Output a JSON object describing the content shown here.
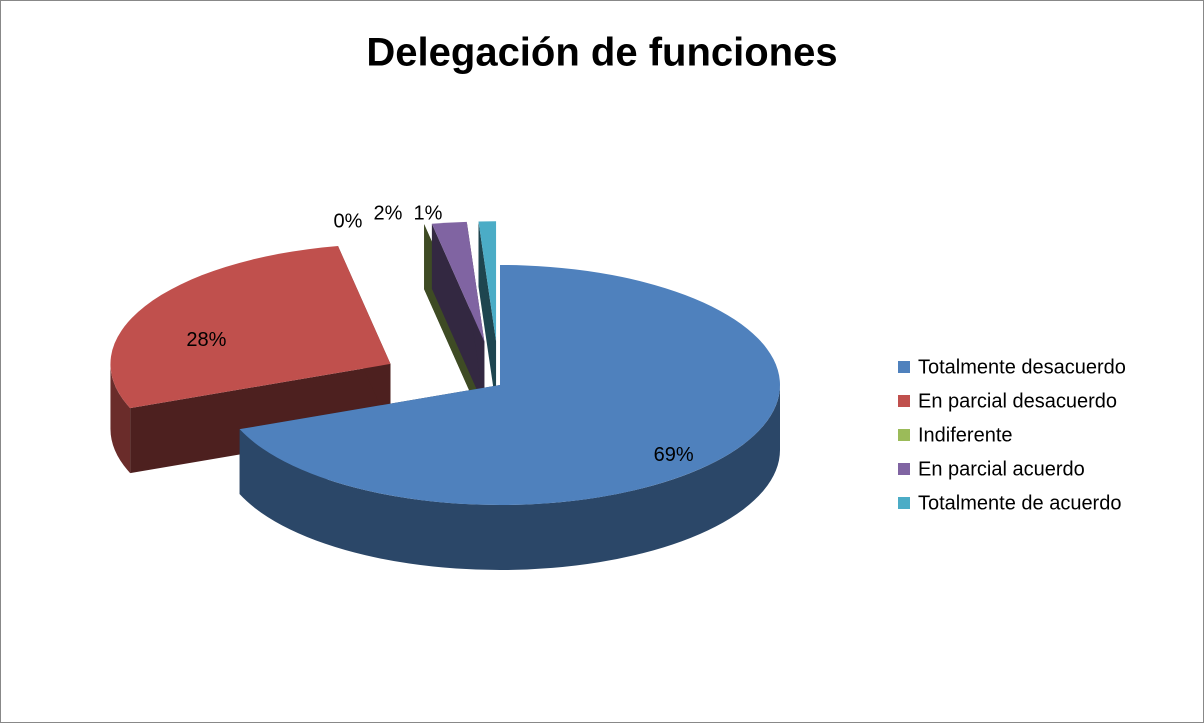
{
  "chart_data": {
    "type": "pie",
    "title": "Delegación de funciones",
    "categories": [
      "Totalmente desacuerdo",
      "En parcial desacuerdo",
      "Indiferente",
      "En parcial acuerdo",
      "Totalmente de acuerdo"
    ],
    "values": [
      69,
      28,
      0,
      2,
      1
    ],
    "value_labels": [
      "69%",
      "28%",
      "0%",
      "2%",
      "1%"
    ],
    "colors": [
      "#4f81bd",
      "#c0504d",
      "#9bbb59",
      "#8064a2",
      "#4bacc6"
    ],
    "legend": "right"
  }
}
